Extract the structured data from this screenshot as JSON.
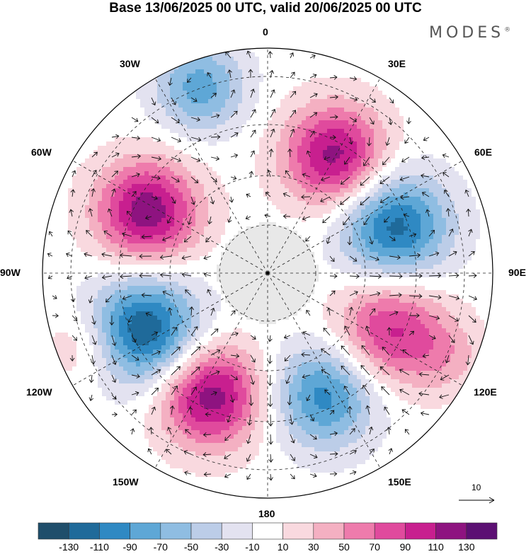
{
  "header": {
    "title": "Base 13/06/2025 00 UTC, valid 20/06/2025 00 UTC",
    "brand": "MODES",
    "brand_mark": "®"
  },
  "map": {
    "projection": "south-polar-stereographic",
    "longitude_labels": {
      "lon_0": "0",
      "lon_30e": "30E",
      "lon_60e": "60E",
      "lon_90e": "90E",
      "lon_120e": "120E",
      "lon_150e": "150E",
      "lon_180": "180",
      "lon_150w": "150W",
      "lon_120w": "120W",
      "lon_90w": "90W",
      "lon_60w": "60W",
      "lon_30w": "30W"
    },
    "vector_reference": {
      "label": "10",
      "magnitude": 10
    },
    "anomaly_centers": [
      {
        "lon_deg": 30,
        "sign": "positive",
        "peak": 120,
        "spread": 0.16
      },
      {
        "lon_deg": -20,
        "sign": "negative",
        "peak": -80,
        "spread": 0.14
      },
      {
        "lon_deg": 70,
        "sign": "negative",
        "peak": -120,
        "spread": 0.17
      },
      {
        "lon_deg": 115,
        "sign": "positive",
        "peak": 95,
        "spread": 0.17
      },
      {
        "lon_deg": 155,
        "sign": "negative",
        "peak": -100,
        "spread": 0.16
      },
      {
        "lon_deg": -155,
        "sign": "positive",
        "peak": 125,
        "spread": 0.16
      },
      {
        "lon_deg": -115,
        "sign": "negative",
        "peak": -130,
        "spread": 0.17
      },
      {
        "lon_deg": -63,
        "sign": "positive",
        "peak": 125,
        "spread": 0.16
      },
      {
        "lon_deg": -112,
        "sign": "positive",
        "peak": 35,
        "spread": 0.12
      },
      {
        "lon_deg": 115,
        "sign": "positive",
        "peak": 30,
        "spread": 0.12
      }
    ]
  },
  "colorbar": {
    "colors": [
      "#1f4e6b",
      "#1f6a9a",
      "#2f89c3",
      "#5ea7d6",
      "#8fbde2",
      "#bccde8",
      "#e3e2f0",
      "#ffffff",
      "#f9d9df",
      "#f4b0c2",
      "#ee7bac",
      "#e04a9d",
      "#c81f8f",
      "#8e1380",
      "#5c1073"
    ],
    "labels": [
      "-130",
      "-110",
      "-90",
      "-70",
      "-50",
      "-30",
      "-10",
      "10",
      "30",
      "50",
      "70",
      "90",
      "110",
      "130"
    ],
    "thresholds": [
      -130,
      -110,
      -90,
      -70,
      -50,
      -30,
      -10,
      10,
      30,
      50,
      70,
      90,
      110,
      130
    ]
  }
}
